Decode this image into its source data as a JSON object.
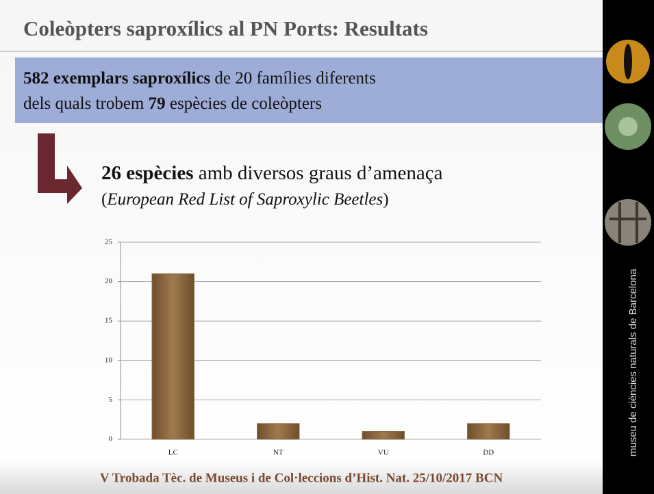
{
  "header": {
    "title": "Coleòpters saproxílics al PN Ports:  Resultats"
  },
  "summary": {
    "line1": [
      {
        "text": "582 exemplars saproxílics",
        "bold": true
      },
      {
        "text": " de 20 famílies diferents",
        "bold": false
      }
    ],
    "line2": [
      {
        "text": "dels quals trobem ",
        "bold": false
      },
      {
        "text": "79",
        "bold": true
      },
      {
        "text": " espècies de coleòpters",
        "bold": false
      }
    ]
  },
  "subtitle": {
    "bold": "26 espècies",
    "rest": " amb diversos graus d’amenaça",
    "line2_open": "(",
    "line2_italic": "European Red List of Saproxylic Beetles",
    "line2_close": ")"
  },
  "chart_data": {
    "type": "bar",
    "categories": [
      "LC",
      "NT",
      "VU",
      "DD"
    ],
    "values": [
      21,
      2,
      1,
      2
    ],
    "color": "#8a6840",
    "ylim": [
      0,
      25
    ],
    "yticks": [
      0,
      5,
      10,
      15,
      20,
      25
    ],
    "grid": true
  },
  "footer": {
    "text": "V Trobada Tèc. de Museus i de Col·leccions d’Hist. Nat.  25/10/2017 BCN"
  },
  "sidebar": {
    "text": "museu de ciències naturals de Barcelona"
  }
}
